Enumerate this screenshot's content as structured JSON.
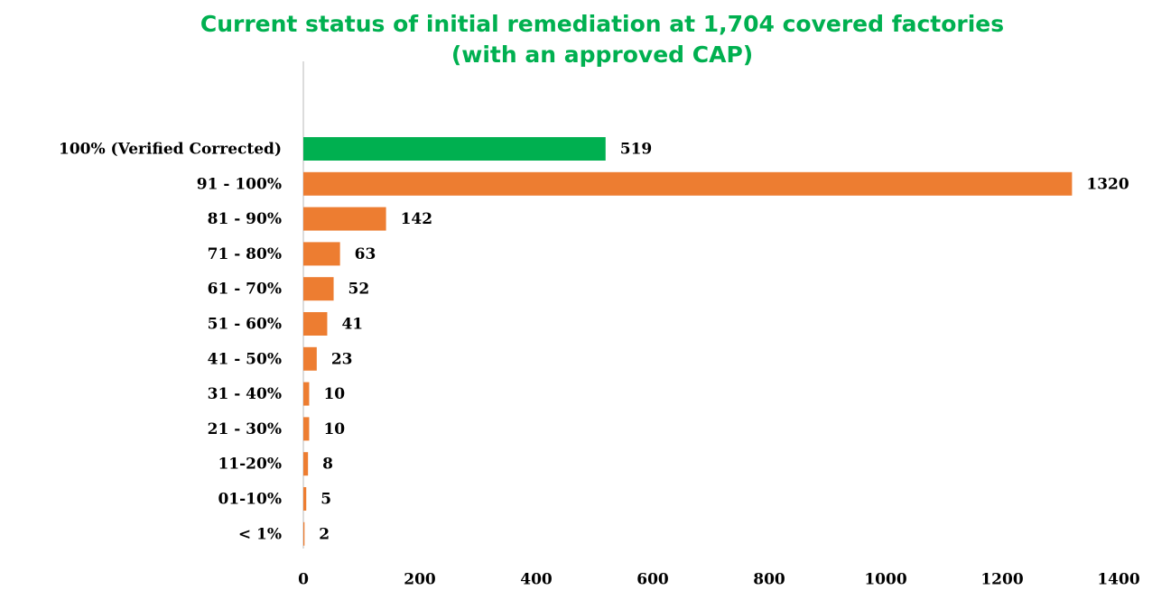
{
  "chart_data": {
    "type": "hbar",
    "title": "Current status of initial remediation at 1,704 covered factories (with an approved CAP)",
    "categories": [
      "100% (Verified Corrected)",
      "91 - 100%",
      "81 - 90%",
      "71 - 80%",
      "61 - 70%",
      "51 - 60%",
      "41 - 50%",
      "31 - 40%",
      "21 - 30%",
      "11-20%",
      "01-10%",
      "< 1%"
    ],
    "values": [
      519,
      1320,
      142,
      63,
      52,
      41,
      23,
      10,
      10,
      8,
      5,
      2
    ],
    "colors": [
      "#00b050",
      "#ed7d31",
      "#ed7d31",
      "#ed7d31",
      "#ed7d31",
      "#ed7d31",
      "#ed7d31",
      "#ed7d31",
      "#ed7d31",
      "#ed7d31",
      "#ed7d31",
      "#ed7d31"
    ],
    "xlim": [
      0,
      1400
    ],
    "xticks": [
      0,
      200,
      400,
      600,
      800,
      1000,
      1200,
      1400
    ],
    "grid": false
  }
}
